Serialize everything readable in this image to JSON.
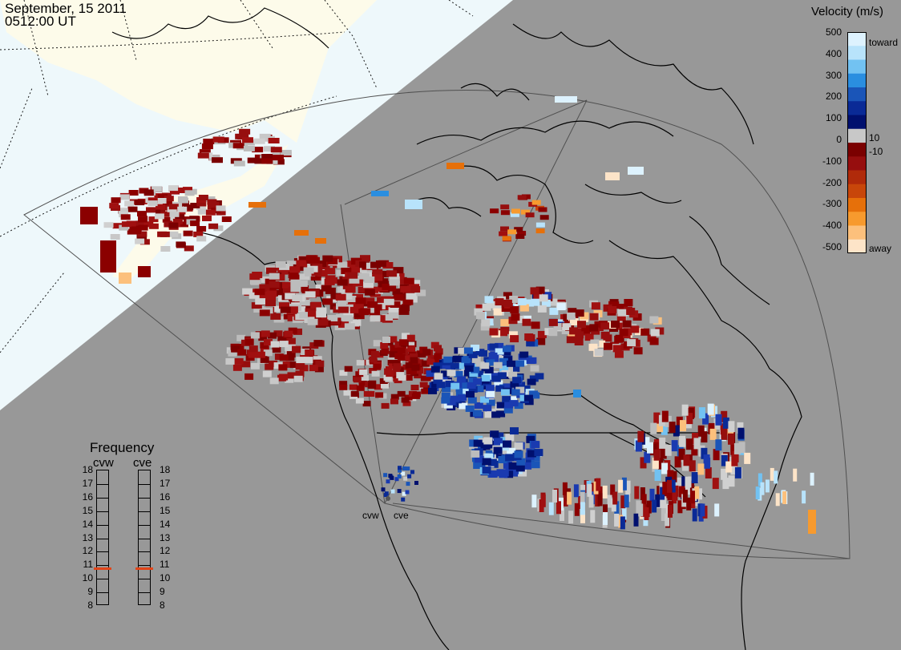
{
  "header": {
    "date": "September, 15 2011",
    "time": "0512:00 UT"
  },
  "colorbar": {
    "title": "Velocity (m/s)",
    "ticks": [
      "500",
      "400",
      "300",
      "200",
      "100",
      "0",
      "-100",
      "-200",
      "-300",
      "-400",
      "-500"
    ],
    "inner_labels": {
      "pos": "10",
      "neg": "-10"
    },
    "end_labels": {
      "top": "toward",
      "bottom": "away"
    },
    "gradient": [
      "#ddf2fe",
      "#b8e3fb",
      "#72c2f2",
      "#2a8ee0",
      "#1a55b8",
      "#0a2a96",
      "#00106e",
      "#c8c8c8",
      "#7a0000",
      "#960e0e",
      "#b02a0a",
      "#c8460a",
      "#e6700a",
      "#f79a2e",
      "#fcc07c",
      "#fde4c8"
    ]
  },
  "frequency_panel": {
    "title": "Frequency",
    "columns": [
      {
        "label": "cvw",
        "marker_mhz": 10.8
      },
      {
        "label": "cve",
        "marker_mhz": 10.8
      }
    ],
    "scale": [
      "18",
      "17",
      "16",
      "15",
      "14",
      "13",
      "12",
      "11",
      "10",
      "9",
      "8"
    ],
    "marker_color": "#e24418"
  },
  "radar_sites": [
    {
      "label": "cvw"
    },
    {
      "label": "cve"
    }
  ],
  "map_colors": {
    "background": "#989898",
    "sunlit_ocean": "#eef8fb",
    "sunlit_land": "#fdfbea",
    "coastline": "#000000"
  }
}
